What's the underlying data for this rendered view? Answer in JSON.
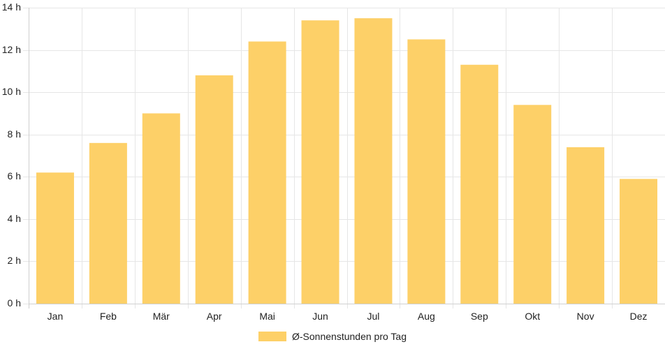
{
  "chart_data": {
    "type": "bar",
    "categories": [
      "Jan",
      "Feb",
      "Mär",
      "Apr",
      "Mai",
      "Jun",
      "Jul",
      "Aug",
      "Sep",
      "Okt",
      "Nov",
      "Dez"
    ],
    "series": [
      {
        "name": "Ø-Sonnenstunden pro Tag",
        "values": [
          6.2,
          7.6,
          9.0,
          10.8,
          12.4,
          13.4,
          13.5,
          12.5,
          11.3,
          9.4,
          7.4,
          5.9
        ],
        "color": "#fdd068"
      }
    ],
    "y_ticks": [
      "0 h",
      "2 h",
      "4 h",
      "6 h",
      "8 h",
      "10 h",
      "12 h",
      "14 h"
    ],
    "ylim": [
      0,
      14
    ],
    "y_tick_step": 2,
    "grid": true,
    "legend": "bottom-center",
    "title": "",
    "xlabel": "",
    "ylabel": ""
  }
}
